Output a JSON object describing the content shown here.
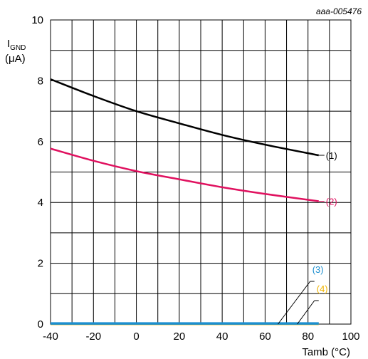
{
  "chart_data": {
    "type": "line",
    "reference": "aaa-005476",
    "xlabel": "Tamb (°C)",
    "ylabel": {
      "main": "I",
      "sub": "GND",
      "unit": "(μA)"
    },
    "xlim": [
      -40,
      100
    ],
    "ylim": [
      0,
      10
    ],
    "xticks": [
      "-40",
      "-20",
      "0",
      "20",
      "40",
      "60",
      "80",
      "100"
    ],
    "yticks": [
      "0",
      "2",
      "4",
      "6",
      "8",
      "10"
    ],
    "grid": true,
    "series": [
      {
        "name": "(1)",
        "color": "#000000",
        "x": [
          -40,
          -20,
          0,
          20,
          40,
          60,
          85
        ],
        "y": [
          8.05,
          7.5,
          7.0,
          6.6,
          6.22,
          5.9,
          5.55
        ]
      },
      {
        "name": "(2)",
        "color": "#e0115f",
        "x": [
          -40,
          -20,
          0,
          20,
          40,
          60,
          85
        ],
        "y": [
          5.77,
          5.37,
          5.03,
          4.76,
          4.5,
          4.28,
          4.04
        ]
      },
      {
        "name": "(3)",
        "color": "#1c8fd0",
        "x": [
          -40,
          85
        ],
        "y": [
          0.02,
          0.02
        ]
      },
      {
        "name": "(4)",
        "color": "#f0b400",
        "x": [
          -40,
          85
        ],
        "y": [
          0.01,
          0.01
        ]
      }
    ]
  }
}
